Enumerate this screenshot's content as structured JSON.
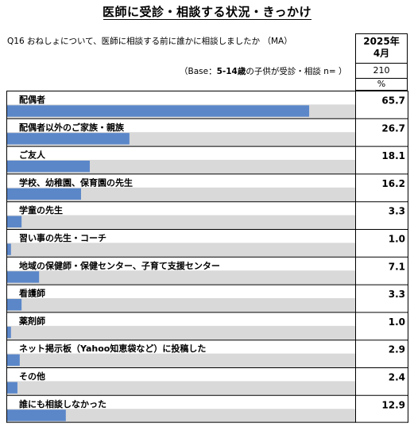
{
  "header": {
    "title": "医師に受診・相談する状況・きっかけ",
    "question": "Q16 おねしょについて、医師に相談する前に誰かに相談しましたか （MA）",
    "base_prefix": "（Base：",
    "base_bold": "5-14歳",
    "base_suffix": "の子供が受診・相談 n= ）",
    "period_line1": "2025年",
    "period_line2": "4月",
    "n_value": "210",
    "unit": "%"
  },
  "colors": {
    "bar": "#5b87c9",
    "band": "#d9d9d9",
    "grid": "#000000"
  },
  "chart_data": {
    "type": "bar",
    "orientation": "horizontal",
    "categories": [
      "配偶者",
      "配偶者以外のご家族・親族",
      "ご友人",
      "学校、幼稚園、保育園の先生",
      "学童の先生",
      "習い事の先生・コーチ",
      "地域の保健師・保健センター、子育て支援センター",
      "看護師",
      "薬剤師",
      "ネット掲示板（Yahoo知恵袋など）に投稿した",
      "その他",
      "誰にも相談しなかった"
    ],
    "values": [
      65.7,
      26.7,
      18.1,
      16.2,
      3.3,
      1.0,
      7.1,
      3.3,
      1.0,
      2.9,
      2.4,
      12.9
    ],
    "value_labels": [
      "65.7",
      "26.7",
      "18.1",
      "16.2",
      "3.3",
      "1.0",
      "7.1",
      "3.3",
      "1.0",
      "2.9",
      "2.4",
      "12.9"
    ],
    "xlim": [
      0,
      100
    ]
  }
}
